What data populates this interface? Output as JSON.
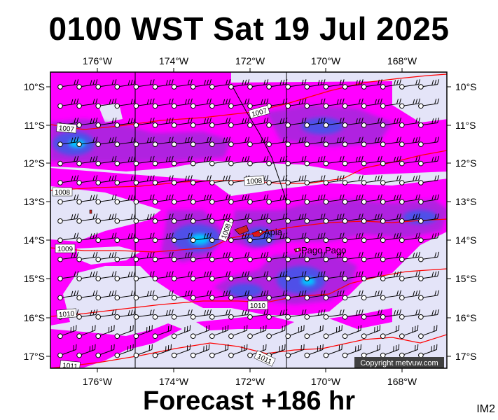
{
  "header": {
    "title": "0100 WST Sat 19 Jul 2025"
  },
  "footer": {
    "forecast": "Forecast +186 hr",
    "tag": "IM2"
  },
  "map": {
    "lon_labels": [
      "176°W",
      "174°W",
      "172°W",
      "170°W",
      "168°W"
    ],
    "lat_labels": [
      "10°S",
      "11°S",
      "12°S",
      "13°S",
      "14°S",
      "15°S",
      "16°S",
      "17°S"
    ],
    "copyright": "Copyright metvuw.com",
    "places": [
      {
        "name": "Apia"
      },
      {
        "name": "Pago Pago"
      }
    ],
    "isobars": [
      "1007",
      "1007",
      "1008",
      "1008",
      "1009",
      "1008",
      "1010",
      "1010",
      "1011",
      "1011"
    ],
    "colors": {
      "background": "#e4e4f8",
      "rain_light": "#ff00ff",
      "rain_mid": "#b020e0",
      "rain_heavy": "#5050e8",
      "rain_core": "#00c8ff",
      "isobar": "#ff0000"
    }
  }
}
